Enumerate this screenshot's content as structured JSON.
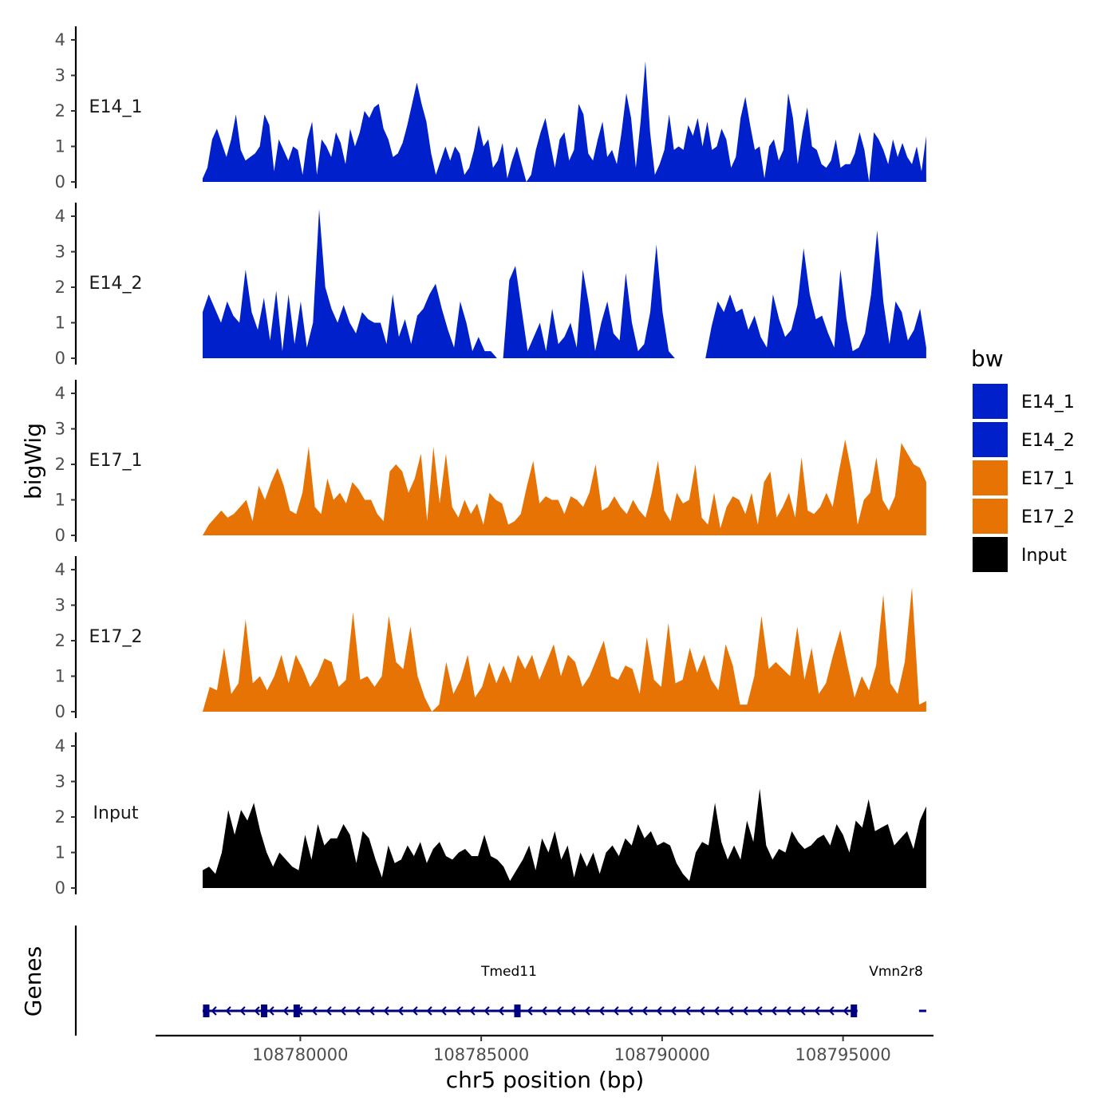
{
  "chart_data": {
    "type": "area",
    "title": "",
    "xlabel": "chr5 position (bp)",
    "ylabel": "bigWig",
    "genes_label": "Genes",
    "xlim": [
      108776000,
      108797500
    ],
    "x_ticks": [
      108780000,
      108785000,
      108790000,
      108795000
    ],
    "x_tick_labels": [
      "108780000",
      "108785000",
      "108790000",
      "108795000"
    ],
    "ylim": [
      0,
      4.3
    ],
    "y_ticks": [
      0,
      1,
      2,
      3,
      4
    ],
    "y_tick_labels": [
      "0",
      "1",
      "2",
      "3",
      "4"
    ],
    "data_x_range": [
      108777300,
      108797300
    ],
    "legend": {
      "title": "bw",
      "position": "right",
      "entries": [
        {
          "label": "E14_1",
          "color": "#0020cc"
        },
        {
          "label": "E14_2",
          "color": "#0020cc"
        },
        {
          "label": "E17_1",
          "color": "#e87305"
        },
        {
          "label": "E17_2",
          "color": "#e87305"
        },
        {
          "label": "Input",
          "color": "#000000"
        }
      ]
    },
    "series": [
      {
        "name": "E14_1",
        "color": "#0020cc",
        "values": [
          0.1,
          0.4,
          1.2,
          1.5,
          1.1,
          0.7,
          1.2,
          1.9,
          0.9,
          0.6,
          0.7,
          0.8,
          1.0,
          1.9,
          1.6,
          0.3,
          1.2,
          0.9,
          0.6,
          1.0,
          0.9,
          0.2,
          1.2,
          1.7,
          0.2,
          1.2,
          1.0,
          0.7,
          1.4,
          1.1,
          0.5,
          1.5,
          1.0,
          1.4,
          2.0,
          1.8,
          2.1,
          2.2,
          1.5,
          1.2,
          0.7,
          0.8,
          1.1,
          1.6,
          2.2,
          2.8,
          2.2,
          1.7,
          0.8,
          0.2,
          0.6,
          1.0,
          0.6,
          1.0,
          0.8,
          0.2,
          0.4,
          0.9,
          1.6,
          1.0,
          1.2,
          0.4,
          0.6,
          1.1,
          0.1,
          0.6,
          1.0,
          0.5,
          0.0,
          0.2,
          0.9,
          1.4,
          1.8,
          1.1,
          0.4,
          1.2,
          1.4,
          0.6,
          0.9,
          2.2,
          1.9,
          0.8,
          0.6,
          1.2,
          1.7,
          0.7,
          0.9,
          0.5,
          1.4,
          2.5,
          1.8,
          0.4,
          1.7,
          3.4,
          1.4,
          0.2,
          0.5,
          0.9,
          1.9,
          0.9,
          1.0,
          0.9,
          1.6,
          1.3,
          1.8,
          1.0,
          1.7,
          0.9,
          1.0,
          1.5,
          1.2,
          0.4,
          0.7,
          1.8,
          2.4,
          1.6,
          0.9,
          1.0,
          0.1,
          1.0,
          1.2,
          0.6,
          0.9,
          2.5,
          1.8,
          0.5,
          1.4,
          2.1,
          1.0,
          0.9,
          0.5,
          0.4,
          0.6,
          1.2,
          0.4,
          0.5,
          0.5,
          0.8,
          1.4,
          0.9,
          0.0,
          1.4,
          1.2,
          0.9,
          0.5,
          1.2,
          0.7,
          1.1,
          0.7,
          0.5,
          1.0,
          0.3,
          1.3
        ]
      },
      {
        "name": "E14_2",
        "color": "#0020cc",
        "values": [
          1.3,
          1.8,
          1.4,
          1.0,
          1.6,
          1.2,
          1.0,
          2.5,
          1.3,
          0.8,
          1.7,
          0.5,
          1.9,
          0.2,
          1.8,
          0.4,
          1.6,
          0.3,
          1.0,
          4.2,
          2.0,
          1.4,
          1.0,
          1.5,
          1.0,
          0.7,
          1.3,
          1.1,
          1.0,
          1.0,
          0.4,
          1.8,
          0.6,
          1.1,
          0.4,
          1.2,
          1.4,
          1.8,
          2.1,
          1.4,
          0.8,
          0.3,
          1.6,
          1.0,
          0.2,
          0.6,
          0.2,
          0.2,
          0.0,
          0.0,
          2.2,
          2.6,
          1.4,
          0.2,
          0.6,
          1.0,
          0.2,
          1.4,
          0.4,
          0.6,
          1.0,
          0.3,
          2.5,
          1.5,
          0.2,
          1.0,
          1.6,
          0.7,
          0.5,
          2.4,
          1.0,
          0.2,
          0.4,
          1.3,
          3.2,
          1.3,
          0.2,
          0.0,
          0.0,
          0.0,
          0.0,
          0.0,
          0.0,
          0.9,
          1.6,
          1.3,
          1.8,
          1.3,
          1.4,
          0.8,
          1.2,
          0.6,
          0.3,
          1.8,
          1.1,
          0.6,
          0.8,
          1.5,
          3.1,
          1.8,
          1.1,
          1.2,
          0.7,
          0.3,
          2.5,
          1.1,
          0.2,
          0.3,
          0.7,
          1.8,
          3.6,
          1.6,
          0.4,
          1.6,
          1.3,
          0.5,
          0.8,
          1.4,
          0.3
        ]
      },
      {
        "name": "E17_1",
        "color": "#e87305",
        "values": [
          0.0,
          0.3,
          0.5,
          0.7,
          0.5,
          0.6,
          0.8,
          1.0,
          0.4,
          1.4,
          1.0,
          1.5,
          1.9,
          1.4,
          0.7,
          0.6,
          1.2,
          2.5,
          0.8,
          0.6,
          1.6,
          1.0,
          1.2,
          0.9,
          1.5,
          1.3,
          1.0,
          1.0,
          0.6,
          0.4,
          1.8,
          2.0,
          1.8,
          1.2,
          1.6,
          2.3,
          0.4,
          2.5,
          0.9,
          2.3,
          0.8,
          0.5,
          1.0,
          0.6,
          0.9,
          0.3,
          1.2,
          1.0,
          0.9,
          0.3,
          0.4,
          0.6,
          1.4,
          2.1,
          0.9,
          1.1,
          1.0,
          1.0,
          0.6,
          1.1,
          1.0,
          0.8,
          1.2,
          2.0,
          0.7,
          0.8,
          1.1,
          0.8,
          0.6,
          1.0,
          0.7,
          0.5,
          1.2,
          2.1,
          0.7,
          0.4,
          1.2,
          0.9,
          1.0,
          2.0,
          0.5,
          0.3,
          1.2,
          0.2,
          0.8,
          1.1,
          1.0,
          0.6,
          1.2,
          0.3,
          1.5,
          1.8,
          0.5,
          0.8,
          1.2,
          0.5,
          2.2,
          0.7,
          0.6,
          0.8,
          1.2,
          0.8,
          1.8,
          2.7,
          1.8,
          0.3,
          1.0,
          1.2,
          2.2,
          1.0,
          0.7,
          1.1,
          2.6,
          2.3,
          2.0,
          1.9,
          1.5
        ]
      },
      {
        "name": "E17_2",
        "color": "#e87305",
        "values": [
          0.0,
          0.7,
          0.6,
          1.8,
          0.5,
          0.8,
          2.6,
          0.8,
          1.0,
          0.6,
          1.0,
          1.6,
          0.8,
          1.6,
          1.2,
          0.7,
          1.0,
          1.5,
          1.4,
          0.7,
          0.9,
          2.8,
          0.9,
          1.0,
          0.7,
          1.0,
          2.7,
          1.4,
          1.2,
          2.4,
          1.0,
          0.4,
          0.0,
          0.2,
          1.4,
          0.5,
          0.9,
          1.6,
          0.4,
          0.7,
          1.4,
          0.8,
          1.3,
          0.8,
          1.6,
          1.2,
          1.6,
          0.9,
          1.4,
          1.9,
          1.0,
          1.6,
          1.4,
          0.7,
          1.0,
          1.5,
          2.0,
          1.0,
          0.9,
          1.3,
          1.2,
          0.5,
          2.1,
          0.9,
          0.7,
          2.5,
          0.8,
          0.9,
          1.8,
          1.1,
          1.6,
          0.9,
          0.6,
          1.9,
          1.3,
          0.2,
          0.2,
          1.0,
          2.7,
          1.2,
          1.4,
          1.2,
          1.0,
          2.4,
          0.9,
          1.8,
          0.5,
          0.8,
          1.6,
          2.3,
          1.3,
          0.4,
          1.0,
          0.6,
          1.3,
          3.3,
          0.8,
          0.5,
          1.4,
          3.5,
          0.2,
          0.3
        ]
      },
      {
        "name": "Input",
        "color": "#000000",
        "values": [
          0.5,
          0.6,
          0.4,
          1.0,
          2.2,
          1.5,
          2.2,
          1.9,
          2.4,
          1.6,
          1.0,
          0.6,
          1.0,
          0.8,
          0.6,
          0.5,
          1.5,
          0.8,
          1.8,
          1.2,
          1.4,
          1.4,
          1.8,
          1.5,
          0.7,
          1.6,
          1.4,
          0.8,
          0.3,
          1.2,
          0.7,
          0.8,
          1.2,
          0.9,
          1.3,
          0.7,
          1.1,
          1.3,
          0.9,
          0.8,
          1.0,
          1.1,
          0.9,
          0.9,
          1.5,
          0.9,
          0.8,
          0.6,
          0.2,
          0.5,
          0.8,
          1.2,
          0.5,
          1.4,
          1.0,
          1.6,
          0.8,
          1.2,
          0.3,
          1.0,
          0.6,
          1.0,
          0.4,
          1.0,
          1.2,
          0.9,
          1.4,
          1.2,
          1.8,
          1.4,
          1.6,
          1.2,
          1.3,
          1.2,
          0.7,
          0.4,
          0.2,
          1.0,
          1.3,
          1.2,
          2.4,
          1.3,
          0.8,
          1.2,
          0.8,
          1.9,
          1.3,
          2.8,
          1.2,
          0.8,
          1.1,
          1.0,
          1.6,
          1.3,
          1.1,
          1.2,
          1.4,
          1.5,
          1.2,
          1.8,
          1.5,
          1.0,
          1.9,
          1.7,
          2.5,
          1.6,
          1.7,
          1.8,
          1.2,
          1.4,
          1.6,
          1.1,
          1.9,
          2.3
        ]
      }
    ],
    "genes": [
      {
        "name": "Tmed11",
        "start": 108777300,
        "end": 108795400,
        "strand": "-",
        "exons": [
          108777400,
          108779000,
          108779900,
          108786000,
          108795300
        ]
      },
      {
        "name": "Vmn2r8",
        "start": 108797100,
        "end": 108797300,
        "strand": "-",
        "exons": []
      }
    ]
  }
}
